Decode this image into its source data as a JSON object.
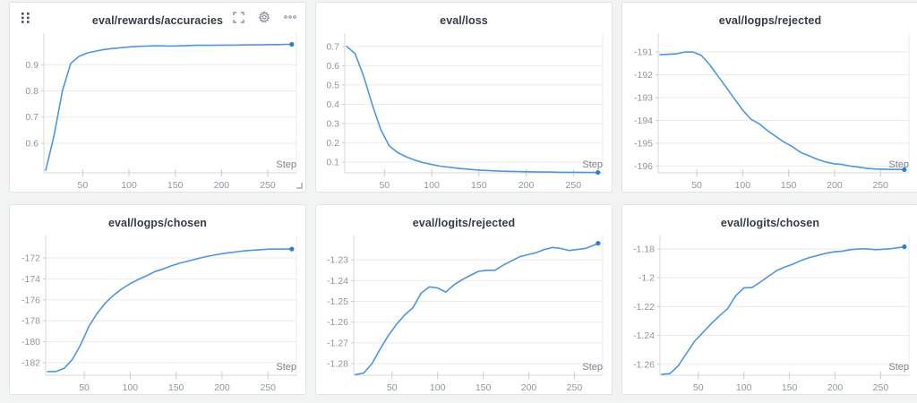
{
  "app": {
    "name": "run-workspace-panel-grid"
  },
  "panel_controls": {
    "drag_handle_icon": "drag-handle",
    "fullscreen_icon": "fullscreen",
    "settings_icon": "gear",
    "more_icon": "ellipsis"
  },
  "colors": {
    "line": "#4d96e0",
    "endpoint": "#2e7ed2",
    "grid": "#ebebed",
    "axis": "#d5d7da",
    "tick": "#c9cbce",
    "panel_bg": "#ffffff",
    "page_bg": "#f2f3f3"
  },
  "axis": {
    "x_label": "Step"
  },
  "chart_data": [
    {
      "type": "line",
      "title": "eval/rewards/accuracies",
      "xlabel": "Step",
      "xlim": [
        8,
        281
      ],
      "xticks": [
        50,
        100,
        150,
        200,
        250
      ],
      "ylim": [
        0.487,
        1.007
      ],
      "yticks": [
        0.9,
        0.8,
        0.7,
        0.6
      ],
      "ytick_labels": [
        "0.9",
        "0.8",
        "0.7",
        "0.6"
      ],
      "plot_left": 38,
      "x": [
        10,
        19,
        28,
        37,
        46,
        55,
        64,
        73,
        82,
        91,
        100,
        109,
        118,
        127,
        136,
        145,
        154,
        163,
        172,
        181,
        190,
        199,
        208,
        217,
        226,
        235,
        244,
        253,
        262,
        271,
        276
      ],
      "y": [
        0.497,
        0.63,
        0.8,
        0.905,
        0.932,
        0.945,
        0.952,
        0.958,
        0.962,
        0.965,
        0.968,
        0.97,
        0.971,
        0.972,
        0.972,
        0.971,
        0.972,
        0.973,
        0.974,
        0.974,
        0.974,
        0.975,
        0.975,
        0.975,
        0.976,
        0.976,
        0.976,
        0.977,
        0.977,
        0.978,
        0.978
      ]
    },
    {
      "type": "line",
      "title": "eval/loss",
      "xlabel": "Step",
      "xlim": [
        8,
        281
      ],
      "xticks": [
        50,
        100,
        150,
        200,
        250
      ],
      "ylim": [
        0.045,
        0.75
      ],
      "yticks": [
        0.7,
        0.6,
        0.5,
        0.4,
        0.3,
        0.2,
        0.1
      ],
      "ytick_labels": [
        "0.7",
        "0.6",
        "0.5",
        "0.4",
        "0.3",
        "0.2",
        "0.1"
      ],
      "plot_left": 32,
      "x": [
        10,
        19,
        28,
        37,
        46,
        55,
        64,
        73,
        82,
        91,
        100,
        109,
        118,
        127,
        136,
        145,
        154,
        163,
        172,
        181,
        190,
        199,
        208,
        217,
        226,
        235,
        244,
        253,
        262,
        271,
        276
      ],
      "y": [
        0.7,
        0.662,
        0.545,
        0.4,
        0.27,
        0.185,
        0.15,
        0.128,
        0.111,
        0.098,
        0.088,
        0.08,
        0.074,
        0.069,
        0.065,
        0.061,
        0.058,
        0.056,
        0.054,
        0.053,
        0.052,
        0.051,
        0.05,
        0.049,
        0.049,
        0.048,
        0.048,
        0.048,
        0.047,
        0.047,
        0.047
      ]
    },
    {
      "type": "line",
      "title": "eval/logps/rejected",
      "xlabel": "Step",
      "xlim": [
        8,
        281
      ],
      "xticks": [
        50,
        100,
        150,
        200,
        250
      ],
      "ylim": [
        -196.3,
        -190.33
      ],
      "yticks": [
        -191,
        -192,
        -193,
        -194,
        -195,
        -196
      ],
      "ytick_labels": [
        "-191",
        "-192",
        "-193",
        "-194",
        "-195",
        "-196"
      ],
      "plot_left": 40,
      "x": [
        10,
        19,
        28,
        37,
        46,
        55,
        64,
        73,
        82,
        91,
        100,
        109,
        118,
        127,
        136,
        145,
        154,
        163,
        172,
        181,
        190,
        199,
        208,
        217,
        226,
        235,
        244,
        253,
        262,
        271,
        276
      ],
      "y": [
        -191.12,
        -191.1,
        -191.08,
        -191.0,
        -191.0,
        -191.15,
        -191.55,
        -192.05,
        -192.55,
        -193.05,
        -193.55,
        -193.95,
        -194.15,
        -194.45,
        -194.7,
        -194.95,
        -195.15,
        -195.4,
        -195.55,
        -195.7,
        -195.82,
        -195.9,
        -195.93,
        -196.0,
        -196.05,
        -196.1,
        -196.13,
        -196.14,
        -196.15,
        -196.15,
        -196.16
      ]
    },
    {
      "type": "line",
      "title": "eval/logps/chosen",
      "xlabel": "Step",
      "xlim": [
        8,
        281
      ],
      "xticks": [
        50,
        100,
        150,
        200,
        250
      ],
      "ylim": [
        -183.2,
        -170.2
      ],
      "yticks": [
        -172,
        -174,
        -176,
        -178,
        -180,
        -182
      ],
      "ytick_labels": [
        "-172",
        "-174",
        "-176",
        "-178",
        "-180",
        "-182"
      ],
      "plot_left": 40,
      "x": [
        10,
        19,
        28,
        37,
        46,
        55,
        64,
        73,
        82,
        91,
        100,
        109,
        118,
        127,
        136,
        145,
        154,
        163,
        172,
        181,
        190,
        199,
        208,
        217,
        226,
        235,
        244,
        253,
        262,
        271,
        276
      ],
      "y": [
        -182.85,
        -182.85,
        -182.55,
        -181.7,
        -180.3,
        -178.55,
        -177.3,
        -176.3,
        -175.55,
        -174.95,
        -174.45,
        -174.05,
        -173.7,
        -173.3,
        -173.05,
        -172.75,
        -172.5,
        -172.3,
        -172.1,
        -171.9,
        -171.75,
        -171.6,
        -171.5,
        -171.4,
        -171.3,
        -171.25,
        -171.2,
        -171.15,
        -171.15,
        -171.15,
        -171.15
      ]
    },
    {
      "type": "line",
      "title": "eval/logits/rejected",
      "xlabel": "Step",
      "xlim": [
        8,
        281
      ],
      "xticks": [
        50,
        100,
        150,
        200,
        250
      ],
      "ylim": [
        -1.2856,
        -1.22
      ],
      "yticks": [
        -1.23,
        -1.24,
        -1.25,
        -1.26,
        -1.27,
        -1.28
      ],
      "ytick_labels": [
        "-1.23",
        "-1.24",
        "-1.25",
        "-1.26",
        "-1.27",
        "-1.28"
      ],
      "plot_left": 42,
      "x": [
        10,
        19,
        28,
        37,
        46,
        55,
        64,
        73,
        82,
        91,
        100,
        109,
        118,
        127,
        136,
        145,
        154,
        163,
        172,
        181,
        190,
        199,
        208,
        217,
        226,
        235,
        244,
        253,
        262,
        271,
        276
      ],
      "y": [
        -1.2853,
        -1.2845,
        -1.28,
        -1.273,
        -1.2665,
        -1.261,
        -1.2565,
        -1.253,
        -1.246,
        -1.243,
        -1.2435,
        -1.2455,
        -1.242,
        -1.2395,
        -1.2375,
        -1.2355,
        -1.235,
        -1.235,
        -1.2325,
        -1.2305,
        -1.2285,
        -1.2275,
        -1.2265,
        -1.225,
        -1.224,
        -1.2245,
        -1.2255,
        -1.225,
        -1.2245,
        -1.223,
        -1.222
      ]
    },
    {
      "type": "line",
      "title": "eval/logits/chosen",
      "xlabel": "Step",
      "xlim": [
        8,
        281
      ],
      "xticks": [
        50,
        100,
        150,
        200,
        250
      ],
      "ylim": [
        -1.2676,
        -1.1732
      ],
      "yticks": [
        -1.18,
        -1.2,
        -1.22,
        -1.24,
        -1.26
      ],
      "ytick_labels": [
        "-1.18",
        "-1.2",
        "-1.22",
        "-1.24",
        "-1.26"
      ],
      "plot_left": 42,
      "x": [
        10,
        19,
        28,
        37,
        46,
        55,
        64,
        73,
        82,
        91,
        100,
        109,
        118,
        127,
        136,
        145,
        154,
        163,
        172,
        181,
        190,
        199,
        208,
        217,
        226,
        235,
        244,
        253,
        262,
        271,
        276
      ],
      "y": [
        -1.267,
        -1.2665,
        -1.261,
        -1.2525,
        -1.244,
        -1.238,
        -1.232,
        -1.2265,
        -1.2215,
        -1.2125,
        -1.207,
        -1.2068,
        -1.203,
        -1.199,
        -1.195,
        -1.1925,
        -1.1905,
        -1.188,
        -1.186,
        -1.1845,
        -1.183,
        -1.182,
        -1.1815,
        -1.1805,
        -1.18,
        -1.18,
        -1.1805,
        -1.1802,
        -1.1798,
        -1.179,
        -1.1785
      ]
    }
  ]
}
